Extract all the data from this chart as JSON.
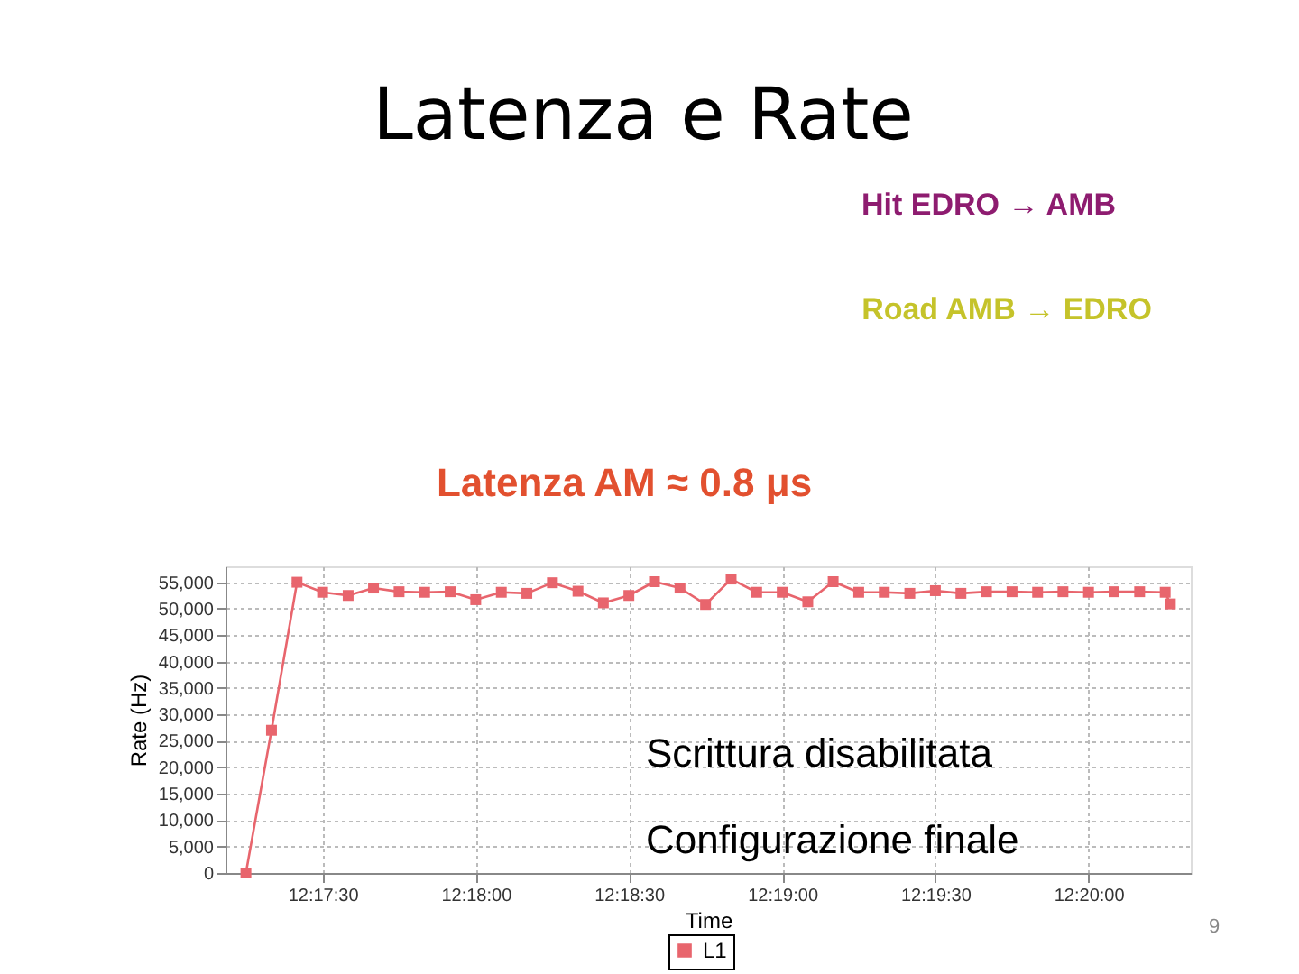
{
  "chart_data": {
    "type": "line",
    "title": "Latenza e Rate",
    "xlabel": "Time",
    "ylabel": "Rate (Hz)",
    "annotations": [
      "Hit EDRO → AMB",
      "Road AMB → EDRO",
      "Latenza AM ≈ 0.8 μs",
      "Scrittura disabilitata",
      "Configurazione finale",
      "9"
    ],
    "x": [
      12.2875,
      12.28889,
      12.29028,
      12.29167,
      12.29306,
      12.29444,
      12.29583,
      12.29722,
      12.29861,
      12.3,
      12.30139,
      12.30278,
      12.30417,
      12.30556,
      12.30694,
      12.30833,
      12.30972,
      12.31111,
      12.3125,
      12.31389,
      12.31528,
      12.31667,
      12.31806,
      12.31944,
      12.32083,
      12.32222,
      12.32361,
      12.325,
      12.32639,
      12.32778,
      12.32917,
      12.33056,
      12.33194,
      12.33333,
      12.33472,
      12.33611,
      12.3375,
      12.33778
    ],
    "series": [
      {
        "name": "L1",
        "color": "#e8656d",
        "values": [
          0,
          27000,
          55000,
          53100,
          52500,
          53900,
          53200,
          53100,
          53200,
          51700,
          53100,
          52900,
          54900,
          53300,
          51100,
          52500,
          55100,
          53900,
          50800,
          55600,
          53100,
          53100,
          51300,
          55100,
          53100,
          53100,
          52900,
          53400,
          52900,
          53200,
          53200,
          53100,
          53200,
          53100,
          53200,
          53200,
          53100,
          50900
        ]
      }
    ],
    "xlim": [
      12.28639,
      12.33889
    ],
    "xticks": [
      {
        "value": 12.29167,
        "label": "12:17:30"
      },
      {
        "value": 12.3,
        "label": "12:18:00"
      },
      {
        "value": 12.30833,
        "label": "12:18:30"
      },
      {
        "value": 12.31667,
        "label": "12:19:00"
      },
      {
        "value": 12.325,
        "label": "12:19:30"
      },
      {
        "value": 12.33333,
        "label": "12:20:00"
      }
    ],
    "ylim": [
      0,
      58000
    ],
    "yticks": [
      0,
      {
        "value": 5000,
        "label": "5,000"
      },
      {
        "value": 10000,
        "label": "10,000"
      },
      {
        "value": 15000,
        "label": "15,000"
      },
      {
        "value": 20000,
        "label": "20,000"
      },
      {
        "value": 25000,
        "label": "25,000"
      },
      {
        "value": 30000,
        "label": "30,000"
      },
      {
        "value": 35000,
        "label": "35,000"
      },
      {
        "value": 40000,
        "label": "40,000"
      },
      {
        "value": 45000,
        "label": "45,000"
      },
      {
        "value": 50000,
        "label": "50,000"
      },
      {
        "value": 55000,
        "label": "55,000"
      }
    ],
    "grid": true,
    "legend": "bottom",
    "marker": "square"
  }
}
